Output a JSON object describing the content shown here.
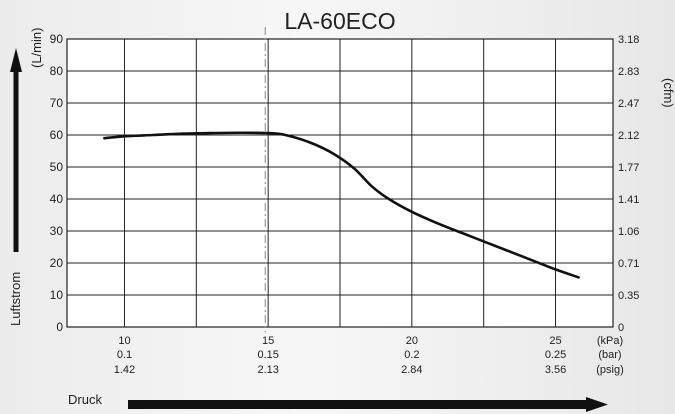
{
  "chart_data": {
    "type": "line",
    "title": "LA-60ECO",
    "ylabel_left": "(L/min)",
    "ylabel_right": "(cfm)",
    "yaxis_caption": "Luftstrom",
    "xaxis_caption": "Druck",
    "xlim": [
      8,
      27
    ],
    "ylim": [
      0,
      90
    ],
    "y_ticks": [
      0,
      10,
      20,
      30,
      40,
      50,
      60,
      70,
      80,
      90
    ],
    "y_right_ticks": [
      "0",
      "0.35",
      "0.71",
      "1.06",
      "1.41",
      "1.77",
      "2.12",
      "2.47",
      "2.83",
      "3.18"
    ],
    "x_ticks": [
      10,
      15,
      20,
      25
    ],
    "x_tick_rows": [
      {
        "unit": "(kPa)",
        "labels": [
          "10",
          "15",
          "20",
          "25"
        ]
      },
      {
        "unit": "(bar)",
        "labels": [
          "0.1",
          "0.15",
          "0.2",
          "0.25"
        ]
      },
      {
        "unit": "(psig)",
        "labels": [
          "1.42",
          "2.13",
          "2.84",
          "3.56"
        ]
      }
    ],
    "reference_line_x": 14.9,
    "grid": true,
    "series": [
      {
        "x": [
          9.3,
          10,
          11,
          12,
          13,
          14,
          15,
          15.6,
          16.5,
          17.3,
          18,
          18.6,
          19.2,
          20,
          21,
          22,
          23,
          24,
          25,
          25.8
        ],
        "y": [
          59,
          59.6,
          60,
          60.4,
          60.6,
          60.7,
          60.6,
          60,
          57.5,
          54,
          49.5,
          44,
          40,
          36,
          32,
          28.5,
          25,
          21.5,
          18,
          15.5
        ]
      }
    ],
    "colors": {
      "line": "#111111",
      "grid": "#222222",
      "reference": "#999999",
      "arrow": "#111111"
    }
  }
}
